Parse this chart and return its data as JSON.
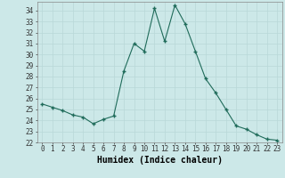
{
  "xlabel": "Humidex (Indice chaleur)",
  "x": [
    0,
    1,
    2,
    3,
    4,
    5,
    6,
    7,
    8,
    9,
    10,
    11,
    12,
    13,
    14,
    15,
    16,
    17,
    18,
    19,
    20,
    21,
    22,
    23
  ],
  "y": [
    25.5,
    25.2,
    24.9,
    24.5,
    24.3,
    23.7,
    24.1,
    24.4,
    28.5,
    31.0,
    30.3,
    34.2,
    31.2,
    34.5,
    32.8,
    30.3,
    27.8,
    26.5,
    25.0,
    23.5,
    23.2,
    22.7,
    22.3,
    22.2
  ],
  "line_color": "#1f6b5a",
  "marker": "+",
  "marker_size": 3.5,
  "bg_color": "#cce8e8",
  "grid_color": "#b8d8d8",
  "ylim": [
    22,
    34.8
  ],
  "yticks": [
    22,
    23,
    24,
    25,
    26,
    27,
    28,
    29,
    30,
    31,
    32,
    33,
    34
  ],
  "xticks": [
    0,
    1,
    2,
    3,
    4,
    5,
    6,
    7,
    8,
    9,
    10,
    11,
    12,
    13,
    14,
    15,
    16,
    17,
    18,
    19,
    20,
    21,
    22,
    23
  ],
  "tick_fontsize": 5.5,
  "xlabel_fontsize": 7
}
